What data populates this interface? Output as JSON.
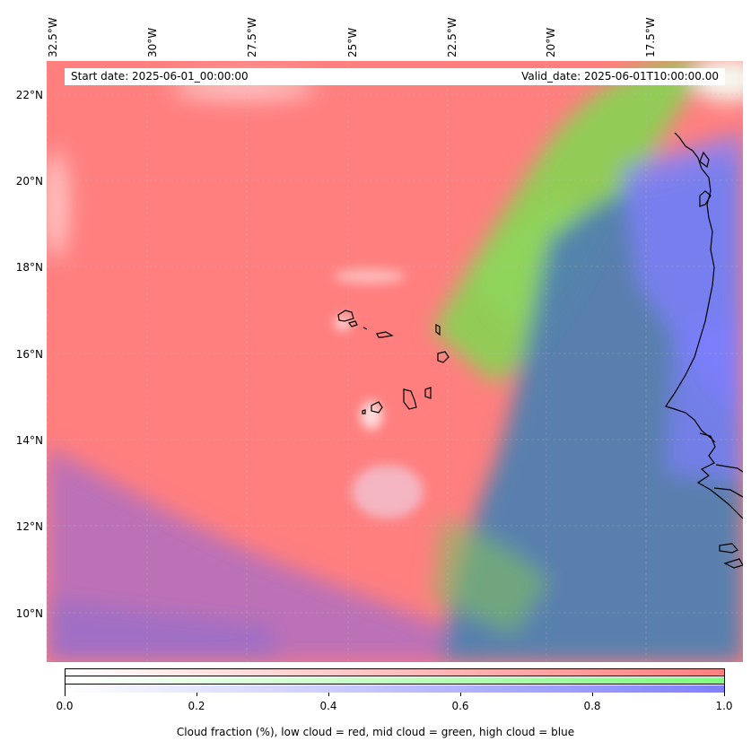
{
  "header": {
    "start_date": "Start date: 2025-06-01_00:00:00",
    "valid_date": "Valid_date: 2025-06-01T10:00:00.00"
  },
  "longitude_labels": [
    "32.5°W",
    "30°W",
    "27.5°W",
    "25°W",
    "22.5°W",
    "20°W",
    "17.5°W"
  ],
  "latitude_labels": [
    "22°N",
    "20°N",
    "18°N",
    "16°N",
    "14°N",
    "12°N",
    "10°N"
  ],
  "colorbar": {
    "ticks": [
      "0.0",
      "0.2",
      "0.4",
      "0.6",
      "0.8",
      "1.0"
    ],
    "label": "Cloud fraction (%), low cloud = red, mid cloud = green, high cloud = blue",
    "colors": {
      "low": "#ff7f7f",
      "mid": "#7fff7f",
      "high": "#7f7fff"
    }
  },
  "map": {
    "colors": {
      "low_cloud": "#ff7f7f",
      "mid_cloud": "#7fd94f",
      "high_cloud": "#5f6fd0",
      "mixed": "#4f7fb0",
      "clear": "#ffffff",
      "coast": "#000000"
    }
  }
}
